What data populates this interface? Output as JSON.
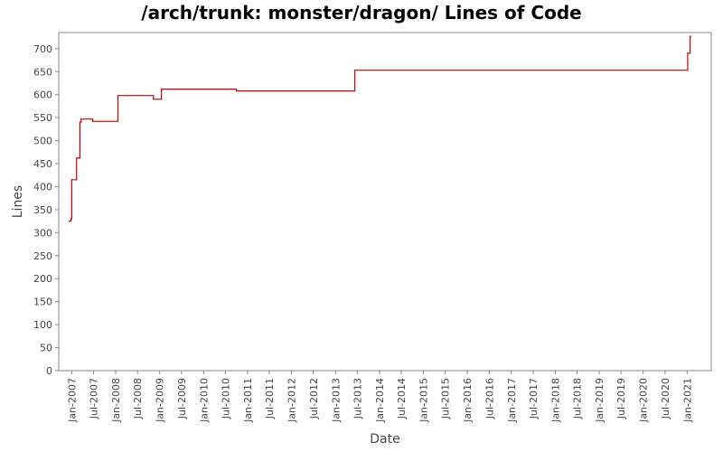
{
  "chart_data": {
    "type": "line",
    "title": "/arch/trunk: monster/dragon/ Lines of Code",
    "xlabel": "Date",
    "ylabel": "Lines",
    "ylim": [
      0,
      735
    ],
    "yticks": [
      0,
      50,
      100,
      150,
      200,
      250,
      300,
      350,
      400,
      450,
      500,
      550,
      600,
      650,
      700
    ],
    "xlim": [
      "2006-09-15",
      "2021-07-20"
    ],
    "xticks": [
      {
        "date": "2007-01-01",
        "label": "Jan-2007"
      },
      {
        "date": "2007-07-01",
        "label": "Jul-2007"
      },
      {
        "date": "2008-01-01",
        "label": "Jan-2008"
      },
      {
        "date": "2008-07-01",
        "label": "Jul-2008"
      },
      {
        "date": "2009-01-01",
        "label": "Jan-2009"
      },
      {
        "date": "2009-07-01",
        "label": "Jul-2009"
      },
      {
        "date": "2010-01-01",
        "label": "Jan-2010"
      },
      {
        "date": "2010-07-01",
        "label": "Jul-2010"
      },
      {
        "date": "2011-01-01",
        "label": "Jan-2011"
      },
      {
        "date": "2011-07-01",
        "label": "Jul-2011"
      },
      {
        "date": "2012-01-01",
        "label": "Jan-2012"
      },
      {
        "date": "2012-07-01",
        "label": "Jul-2012"
      },
      {
        "date": "2013-01-01",
        "label": "Jan-2013"
      },
      {
        "date": "2013-07-01",
        "label": "Jul-2013"
      },
      {
        "date": "2014-01-01",
        "label": "Jan-2014"
      },
      {
        "date": "2014-07-01",
        "label": "Jul-2014"
      },
      {
        "date": "2015-01-01",
        "label": "Jan-2015"
      },
      {
        "date": "2015-07-01",
        "label": "Jul-2015"
      },
      {
        "date": "2016-01-01",
        "label": "Jan-2016"
      },
      {
        "date": "2016-07-01",
        "label": "Jul-2016"
      },
      {
        "date": "2017-01-01",
        "label": "Jan-2017"
      },
      {
        "date": "2017-07-01",
        "label": "Jul-2017"
      },
      {
        "date": "2018-01-01",
        "label": "Jan-2018"
      },
      {
        "date": "2018-07-01",
        "label": "Jul-2018"
      },
      {
        "date": "2019-01-01",
        "label": "Jan-2019"
      },
      {
        "date": "2019-07-01",
        "label": "Jul-2019"
      },
      {
        "date": "2020-01-01",
        "label": "Jan-2020"
      },
      {
        "date": "2020-07-01",
        "label": "Jul-2020"
      },
      {
        "date": "2021-01-01",
        "label": "Jan-2021"
      }
    ],
    "grid": false,
    "legend": "none",
    "series": [
      {
        "step": true,
        "color": "#cc0000",
        "points": [
          {
            "x": "2006-12-10",
            "y": 325
          },
          {
            "x": "2006-12-25",
            "y": 330
          },
          {
            "x": "2007-01-01",
            "y": 415
          },
          {
            "x": "2007-02-10",
            "y": 462
          },
          {
            "x": "2007-03-10",
            "y": 540
          },
          {
            "x": "2007-03-20",
            "y": 547
          },
          {
            "x": "2007-06-25",
            "y": 542
          },
          {
            "x": "2008-01-20",
            "y": 598
          },
          {
            "x": "2008-11-10",
            "y": 590
          },
          {
            "x": "2009-01-15",
            "y": 612
          },
          {
            "x": "2010-10-01",
            "y": 608
          },
          {
            "x": "2013-06-10",
            "y": 653
          },
          {
            "x": "2021-01-05",
            "y": 690
          },
          {
            "x": "2021-01-25",
            "y": 727
          },
          {
            "x": "2021-01-31",
            "y": 727
          }
        ]
      }
    ]
  }
}
